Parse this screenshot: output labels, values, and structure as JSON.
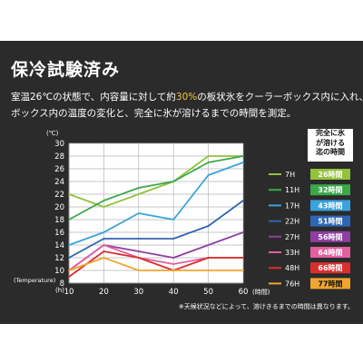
{
  "title": "保冷試験済み",
  "description": {
    "line1_before": "室温26℃の状態で、内容量に対して約",
    "line1_highlight": "30%",
    "line1_after": "の板状氷をクーラーボックス内に入れ、",
    "line2": "ボックス内の温度の変化と、完全に氷が溶けるまでの時間を測定。"
  },
  "note": "※天候状況などによって、溶けきるまでの時間は異なります。",
  "side_header": [
    "完全に氷",
    "が溶ける",
    "迄の時間"
  ],
  "chart_data": {
    "type": "line",
    "y_unit_label": "(℃)",
    "y_caption": "(Temperature)",
    "x_unit_label": "(h)",
    "x_caption": "(時間)",
    "x": [
      10,
      20,
      30,
      40,
      50,
      60
    ],
    "xlim": [
      10,
      60
    ],
    "ylim": [
      8,
      30
    ],
    "y_ticks": [
      8,
      10,
      12,
      14,
      16,
      18,
      20,
      22,
      24,
      26,
      28,
      30
    ],
    "grid": true,
    "series": [
      {
        "name": "7H",
        "duration": "26時間",
        "color": "#93c13b",
        "badge_text": "#ffffff",
        "values": [
          22,
          20,
          22,
          24,
          28,
          28
        ]
      },
      {
        "name": "11H",
        "duration": "32時間",
        "color": "#3aa84a",
        "badge_text": "#ffffff",
        "values": [
          18,
          21,
          23,
          24,
          27,
          28
        ]
      },
      {
        "name": "17H",
        "duration": "43時間",
        "color": "#3aa3dc",
        "badge_text": "#ffffff",
        "values": [
          14,
          16,
          19,
          18,
          25,
          27
        ]
      },
      {
        "name": "22H",
        "duration": "51時間",
        "color": "#2e66b3",
        "badge_text": "#ffffff",
        "values": [
          12,
          15,
          15,
          15,
          17,
          21
        ]
      },
      {
        "name": "27H",
        "duration": "56時間",
        "color": "#8f3fa0",
        "badge_text": "#ffffff",
        "values": [
          10,
          14,
          13,
          12,
          14,
          16
        ]
      },
      {
        "name": "33H",
        "duration": "64時間",
        "color": "#e35fa0",
        "badge_text": "#ffffff",
        "values": [
          10,
          14,
          12,
          11,
          12,
          12
        ]
      },
      {
        "name": "48H",
        "duration": "66時間",
        "color": "#d92f2f",
        "badge_text": "#ffffff",
        "values": [
          9,
          13,
          12,
          10,
          12,
          12
        ]
      },
      {
        "name": "76H",
        "duration": "77時間",
        "color": "#f0a530",
        "badge_text": "#111111",
        "values": [
          10,
          12,
          10,
          10,
          10,
          10
        ]
      }
    ]
  }
}
